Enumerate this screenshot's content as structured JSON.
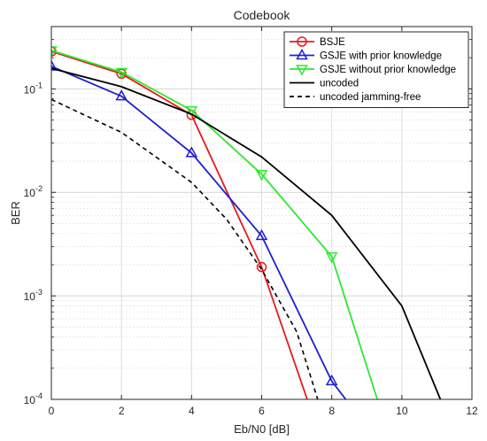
{
  "chart_data": {
    "type": "line",
    "title": "Codebook",
    "xlabel": "Eb/N0 [dB]",
    "ylabel": "BER",
    "xlim": [
      0,
      12
    ],
    "ylim": [
      0.0001,
      0.4
    ],
    "yscale": "log",
    "grid": true,
    "legend_position": "top-right",
    "x_ticks": [
      0,
      2,
      4,
      6,
      8,
      10,
      12
    ],
    "y_ticks": [
      {
        "value": 0.0001,
        "base": "10",
        "exp": "-4"
      },
      {
        "value": 0.001,
        "base": "10",
        "exp": "-3"
      },
      {
        "value": 0.01,
        "base": "10",
        "exp": "-2"
      },
      {
        "value": 0.1,
        "base": "10",
        "exp": "-1"
      }
    ],
    "series": [
      {
        "name": "BSJE",
        "color": "#e8191c",
        "marker": "circle",
        "line": "solid",
        "points": [
          [
            0,
            0.23
          ],
          [
            2,
            0.14
          ],
          [
            4,
            0.056
          ],
          [
            6,
            0.0019
          ],
          [
            7.3,
            0.0001
          ]
        ],
        "marked": [
          0,
          1,
          2,
          3
        ]
      },
      {
        "name": "GSJE with prior knowledge",
        "color": "#1f1fd1",
        "marker": "triangle-up",
        "line": "solid",
        "points": [
          [
            0,
            0.165
          ],
          [
            2,
            0.085
          ],
          [
            4,
            0.024
          ],
          [
            6,
            0.0038
          ],
          [
            8,
            0.00015
          ],
          [
            8.4,
            0.0001
          ]
        ],
        "marked": [
          0,
          1,
          2,
          3,
          4
        ]
      },
      {
        "name": "GSJE without prior knowledge",
        "color": "#2ee82e",
        "marker": "triangle-down",
        "line": "solid",
        "points": [
          [
            0,
            0.235
          ],
          [
            2,
            0.145
          ],
          [
            4,
            0.062
          ],
          [
            6,
            0.015
          ],
          [
            8,
            0.0024
          ],
          [
            9.3,
            0.0001
          ]
        ],
        "marked": [
          0,
          1,
          2,
          3,
          4
        ]
      },
      {
        "name": "uncoded",
        "color": "#000000",
        "marker": "none",
        "line": "solid",
        "points": [
          [
            0,
            0.158
          ],
          [
            2,
            0.105
          ],
          [
            4,
            0.057
          ],
          [
            6,
            0.022
          ],
          [
            8,
            0.006
          ],
          [
            10,
            0.0008
          ],
          [
            11.1,
            0.0001
          ]
        ],
        "marked": []
      },
      {
        "name": "uncoded jamming-free",
        "color": "#000000",
        "marker": "none",
        "line": "dashed",
        "points": [
          [
            0,
            0.079
          ],
          [
            2,
            0.038
          ],
          [
            4,
            0.0125
          ],
          [
            5,
            0.0055
          ],
          [
            6,
            0.0018
          ],
          [
            7,
            0.00045
          ],
          [
            7.6,
            0.0001
          ]
        ],
        "marked": []
      }
    ]
  }
}
